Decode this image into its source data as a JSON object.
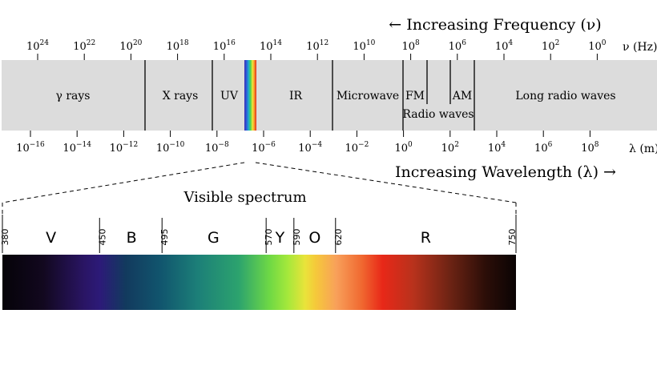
{
  "freq_heading": "← Increasing Frequency (ν)",
  "wave_heading": "Increasing Wavelength (λ) →",
  "freq_unit": "ν (Hz)",
  "wave_unit": "λ (m)",
  "freq_ticks": [
    {
      "base": "10",
      "exp": "24"
    },
    {
      "base": "10",
      "exp": "22"
    },
    {
      "base": "10",
      "exp": "20"
    },
    {
      "base": "10",
      "exp": "18"
    },
    {
      "base": "10",
      "exp": "16"
    },
    {
      "base": "10",
      "exp": "14"
    },
    {
      "base": "10",
      "exp": "12"
    },
    {
      "base": "10",
      "exp": "10"
    },
    {
      "base": "10",
      "exp": "8"
    },
    {
      "base": "10",
      "exp": "6"
    },
    {
      "base": "10",
      "exp": "4"
    },
    {
      "base": "10",
      "exp": "2"
    },
    {
      "base": "10",
      "exp": "0"
    }
  ],
  "wave_ticks": [
    {
      "base": "10",
      "exp": "−16"
    },
    {
      "base": "10",
      "exp": "−14"
    },
    {
      "base": "10",
      "exp": "−12"
    },
    {
      "base": "10",
      "exp": "−10"
    },
    {
      "base": "10",
      "exp": "−8"
    },
    {
      "base": "10",
      "exp": "−6"
    },
    {
      "base": "10",
      "exp": "−4"
    },
    {
      "base": "10",
      "exp": "−2"
    },
    {
      "base": "10",
      "exp": "0"
    },
    {
      "base": "10",
      "exp": "2"
    },
    {
      "base": "10",
      "exp": "4"
    },
    {
      "base": "10",
      "exp": "6"
    },
    {
      "base": "10",
      "exp": "8"
    }
  ],
  "bands": {
    "gamma": "γ rays",
    "xray": "X rays",
    "uv": "UV",
    "ir": "IR",
    "microwave": "Microwave",
    "fm": "FM",
    "am": "AM",
    "radio": "Radio waves",
    "long_radio": "Long radio waves"
  },
  "visible_title": "Visible spectrum",
  "color_letters": [
    "V",
    "B",
    "G",
    "Y",
    "O",
    "R"
  ],
  "nm_marks": [
    "380",
    "450",
    "495",
    "570",
    "590",
    "620",
    "750"
  ],
  "colors": {
    "band_bg": "#dcdcdc",
    "line": "#000000"
  }
}
